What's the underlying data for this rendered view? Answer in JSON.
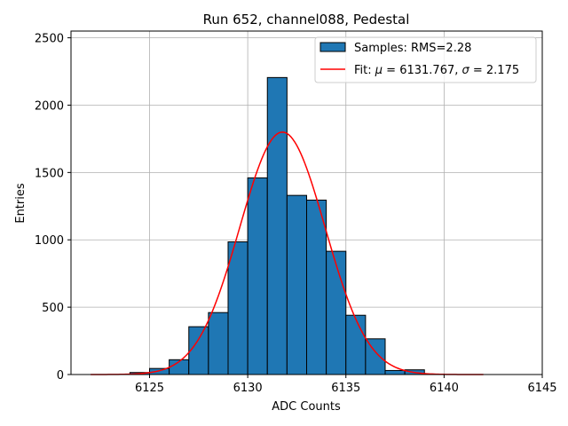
{
  "chart_data": {
    "type": "bar",
    "title": "Run 652, channel088, Pedestal",
    "xlabel": "ADC Counts",
    "ylabel": "Entries",
    "xlim": [
      6121,
      6145
    ],
    "ylim": [
      0,
      2550
    ],
    "x_ticks": [
      6125,
      6130,
      6135,
      6140,
      6145
    ],
    "y_ticks": [
      0,
      500,
      1000,
      1500,
      2000,
      2500
    ],
    "grid": true,
    "legend_position": "top-right",
    "histogram": {
      "name": "Samples: RMS=2.28",
      "color": "#1f77b4",
      "bin_width": 1,
      "bin_edges_start": [
        6124,
        6125,
        6126,
        6127,
        6128,
        6129,
        6130,
        6131,
        6132,
        6133,
        6134,
        6135,
        6136,
        6137,
        6138
      ],
      "values": [
        15,
        45,
        110,
        355,
        460,
        985,
        1460,
        2205,
        1330,
        1295,
        915,
        440,
        265,
        30,
        35
      ]
    },
    "fit": {
      "name_prefix": "Fit: ",
      "name_mu": "μ",
      "name_mu_value": " = 6131.767, ",
      "name_sigma": "σ",
      "name_sigma_value": " = 2.175",
      "color": "#ff0000",
      "mu": 6131.767,
      "sigma": 2.175,
      "amplitude": 1800,
      "x_range": [
        6122,
        6142
      ]
    }
  }
}
